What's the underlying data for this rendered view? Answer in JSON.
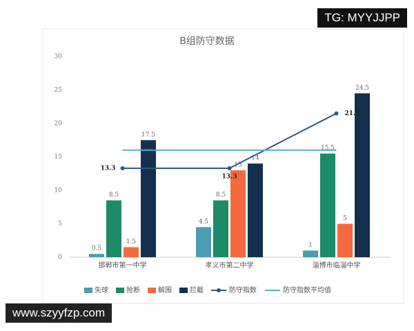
{
  "chart_data": {
    "type": "bar",
    "title": "B组防守数据",
    "categories": [
      "邯郸市第一中学",
      "孝义市第二中学",
      "淄博市临淄中学"
    ],
    "series": [
      {
        "name": "失球",
        "color": "#4a9db3",
        "values": [
          0.5,
          4.5,
          1
        ]
      },
      {
        "name": "抢断",
        "color": "#1d8a68",
        "values": [
          8.5,
          8.5,
          15.5
        ]
      },
      {
        "name": "解围",
        "color": "#f26b3f",
        "values": [
          1.5,
          13,
          5
        ]
      },
      {
        "name": "拦截",
        "color": "#14304e",
        "values": [
          17.5,
          14,
          24.5
        ]
      },
      {
        "name": "防守指数",
        "type": "line",
        "color": "#2b5a87",
        "values": [
          13.3,
          13.3,
          21.5
        ]
      },
      {
        "name": "防守指数平均值",
        "type": "line",
        "color": "#4fb4c4",
        "values": [
          16,
          16,
          16
        ]
      }
    ],
    "ylim": [
      0,
      30
    ],
    "yticks": [
      0,
      5,
      10,
      15,
      20,
      25,
      30
    ],
    "grid": false
  },
  "overlays": {
    "top_right": "TG: MYYJJPP",
    "bottom_left": "www.szyyfzp.com"
  }
}
